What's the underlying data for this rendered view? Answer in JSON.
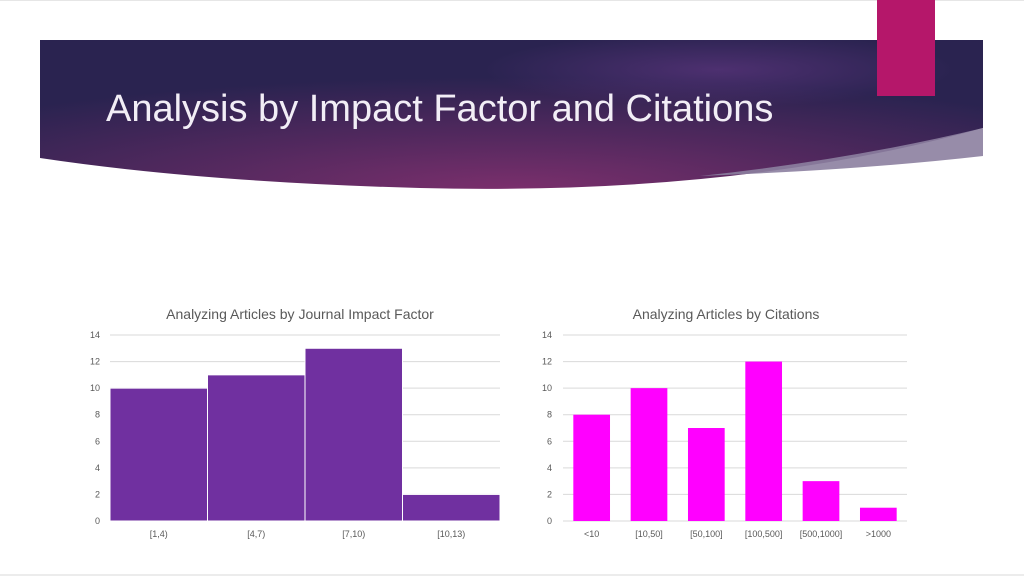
{
  "slide": {
    "title": "Analysis by Impact Factor and Citations"
  },
  "colors": {
    "banner_dark": "#2b2350",
    "banner_mid": "#6b2e6a",
    "accent_tab": "#b5176a",
    "bar_left": "#7030a0",
    "bar_right": "#ff00ff"
  },
  "chart_data": [
    {
      "type": "bar",
      "title": "Analyzing Articles by Journal Impact Factor",
      "categories": [
        "[1,4)",
        "[4,7)",
        "[7,10)",
        "[10,13)"
      ],
      "values": [
        10,
        11,
        13,
        2
      ],
      "xlabel": "",
      "ylabel": "",
      "ylim": [
        0,
        14
      ],
      "yticks": [
        0,
        2,
        4,
        6,
        8,
        10,
        12,
        14
      ],
      "grid": true,
      "color": "#7030a0"
    },
    {
      "type": "bar",
      "title": "Analyzing Articles by Citations",
      "categories": [
        "<10",
        "[10,50]",
        "[50,100]",
        "[100,500]",
        "[500,1000]",
        ">1000"
      ],
      "values": [
        8,
        10,
        7,
        12,
        3,
        1
      ],
      "xlabel": "",
      "ylabel": "",
      "ylim": [
        0,
        14
      ],
      "yticks": [
        0,
        2,
        4,
        6,
        8,
        10,
        12,
        14
      ],
      "grid": true,
      "color": "#ff00ff"
    }
  ]
}
